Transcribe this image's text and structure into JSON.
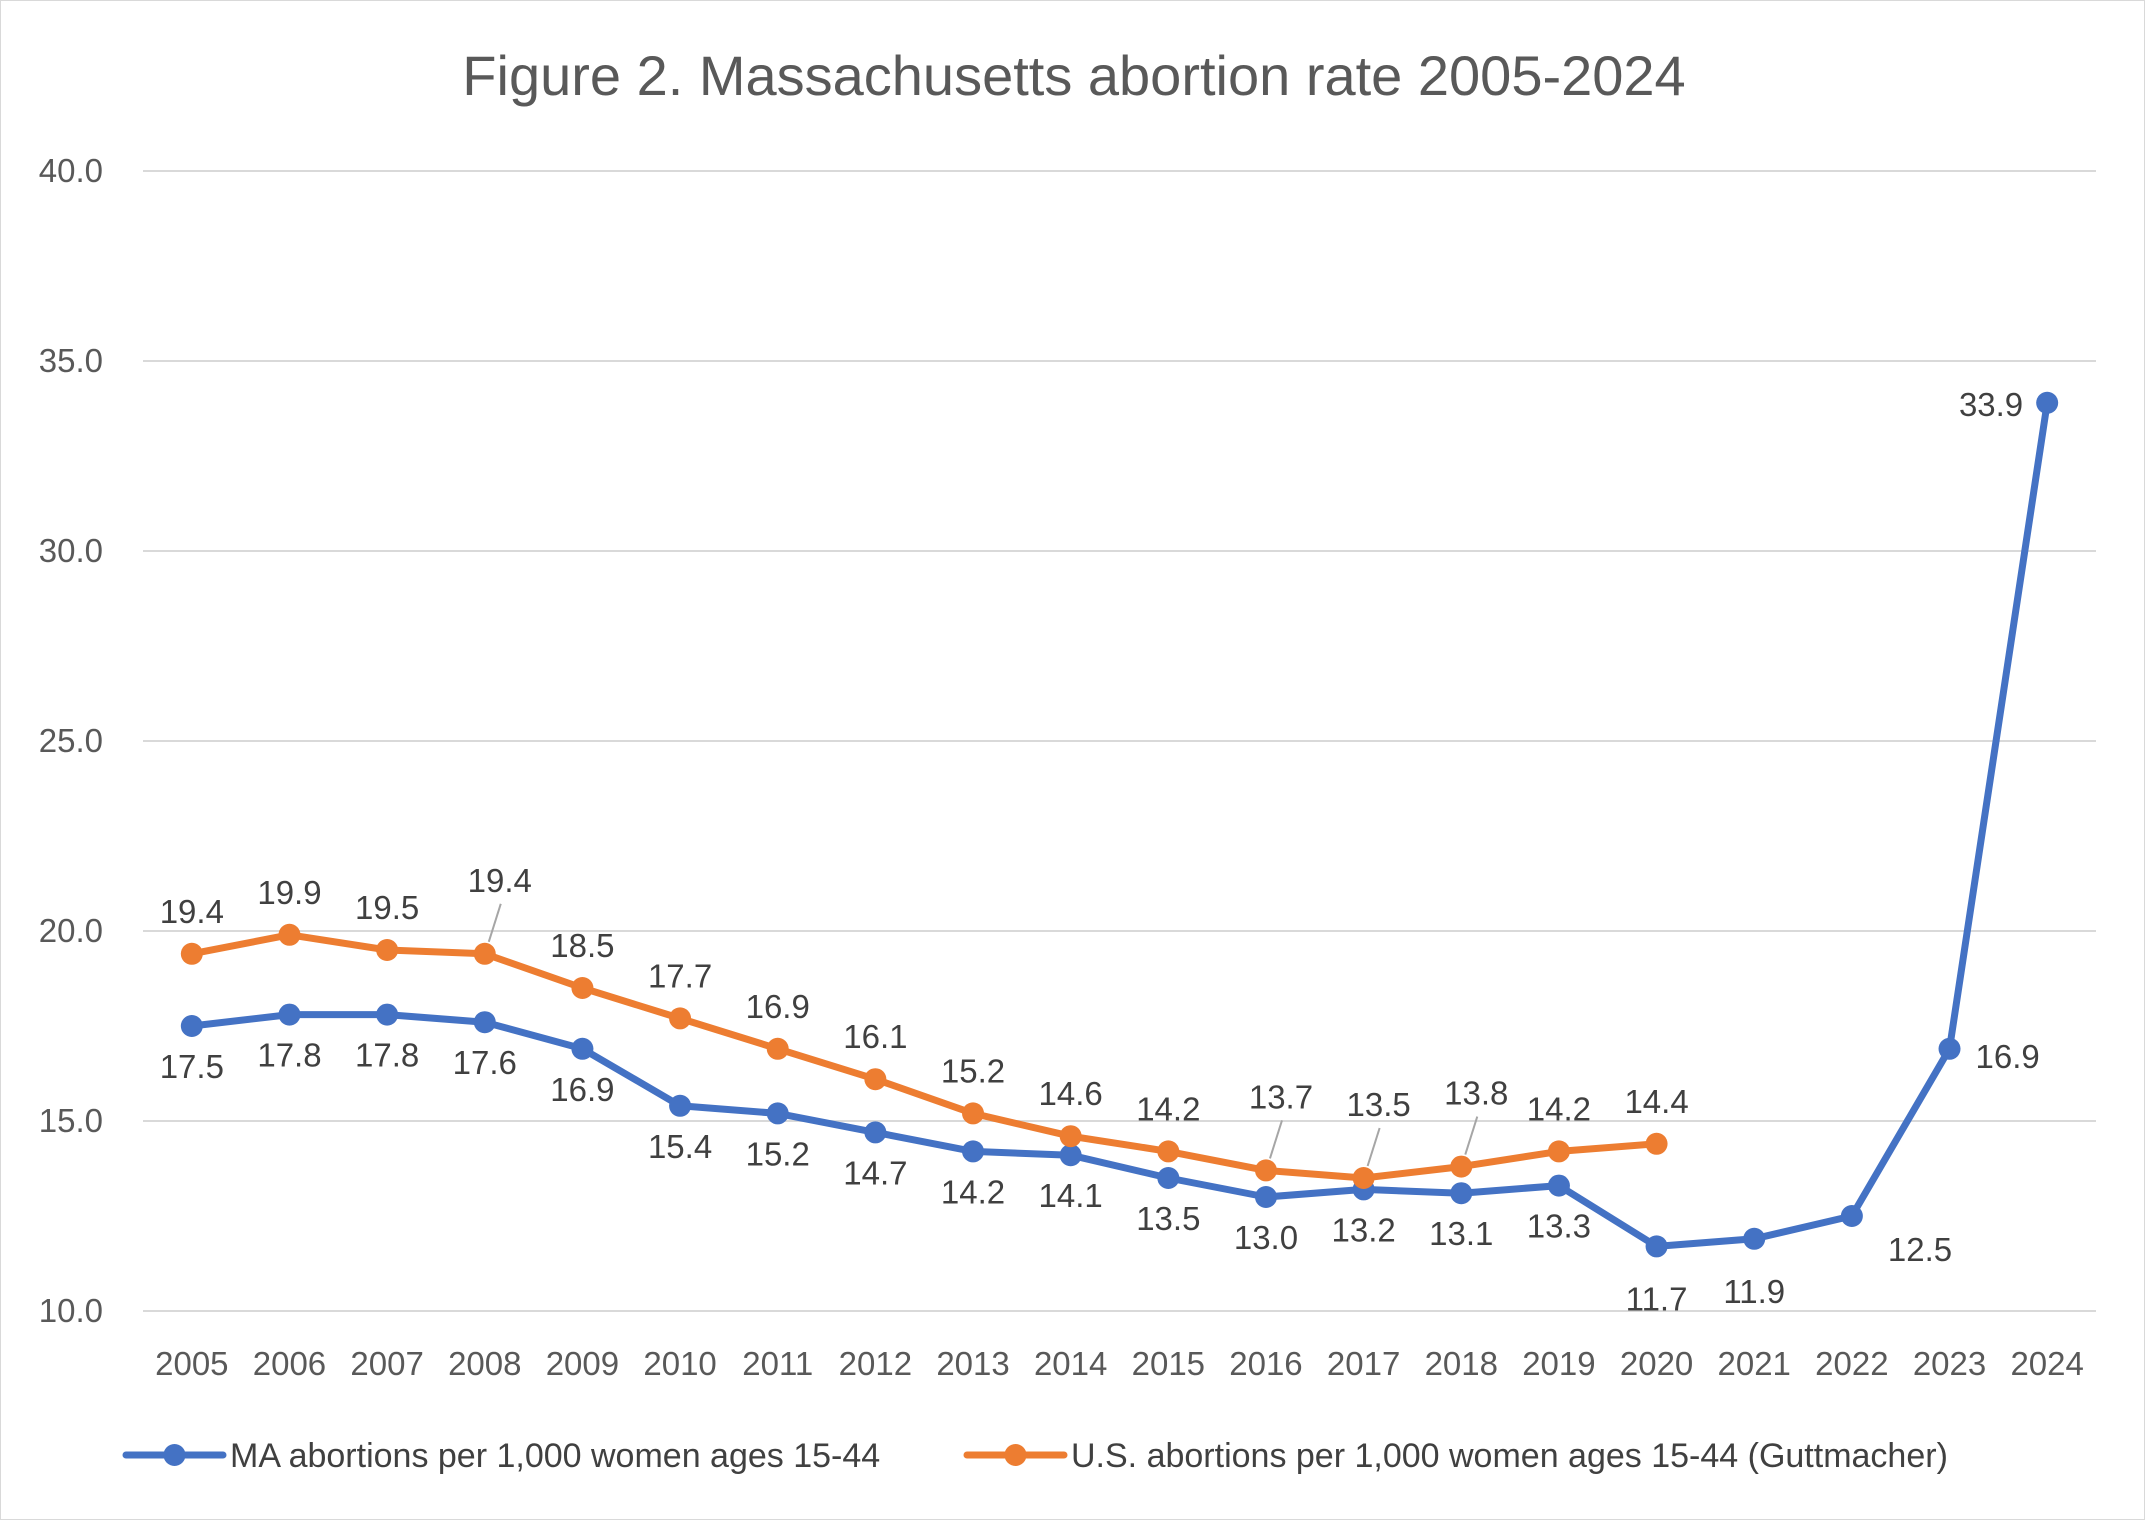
{
  "chart_data": {
    "type": "line",
    "title": "Figure 2. Massachusetts abortion rate 2005-2024",
    "xlabel": "",
    "ylabel": "",
    "ylim": [
      10.0,
      40.0
    ],
    "yticks": [
      "10.0",
      "15.0",
      "20.0",
      "25.0",
      "30.0",
      "35.0",
      "40.0"
    ],
    "grid": "horizontal",
    "legend_position": "bottom",
    "categories": [
      "2005",
      "2006",
      "2007",
      "2008",
      "2009",
      "2010",
      "2011",
      "2012",
      "2013",
      "2014",
      "2015",
      "2016",
      "2017",
      "2018",
      "2019",
      "2020",
      "2021",
      "2022",
      "2023",
      "2024"
    ],
    "series": [
      {
        "name": "MA abortions per 1,000 women ages 15-44",
        "color": "#4472c4",
        "values": [
          17.5,
          17.8,
          17.8,
          17.6,
          16.9,
          15.4,
          15.2,
          14.7,
          14.2,
          14.1,
          13.5,
          13.0,
          13.2,
          13.1,
          13.3,
          11.7,
          11.9,
          12.5,
          16.9,
          33.9
        ],
        "labels": [
          "17.5",
          "17.8",
          "17.8",
          "17.6",
          "16.9",
          "15.4",
          "15.2",
          "14.7",
          "14.2",
          "14.1",
          "13.5",
          "13.0",
          "13.2",
          "13.1",
          "13.3",
          "11.7",
          "11.9",
          "12.5",
          "16.9",
          "33.9"
        ]
      },
      {
        "name": "U.S. abortions per 1,000 women ages 15-44 (Guttmacher)",
        "color": "#ed7d31",
        "values": [
          19.4,
          19.9,
          19.5,
          19.4,
          18.5,
          17.7,
          16.9,
          16.1,
          15.2,
          14.6,
          14.2,
          13.7,
          13.5,
          13.8,
          14.2,
          14.4,
          null,
          null,
          null,
          null
        ],
        "labels": [
          "19.4",
          "19.9",
          "19.5",
          "19.4",
          "18.5",
          "17.7",
          "16.9",
          "16.1",
          "15.2",
          "14.6",
          "14.2",
          "13.7",
          "13.5",
          "13.8",
          "14.2",
          "14.4",
          "",
          "",
          "",
          ""
        ]
      }
    ]
  }
}
